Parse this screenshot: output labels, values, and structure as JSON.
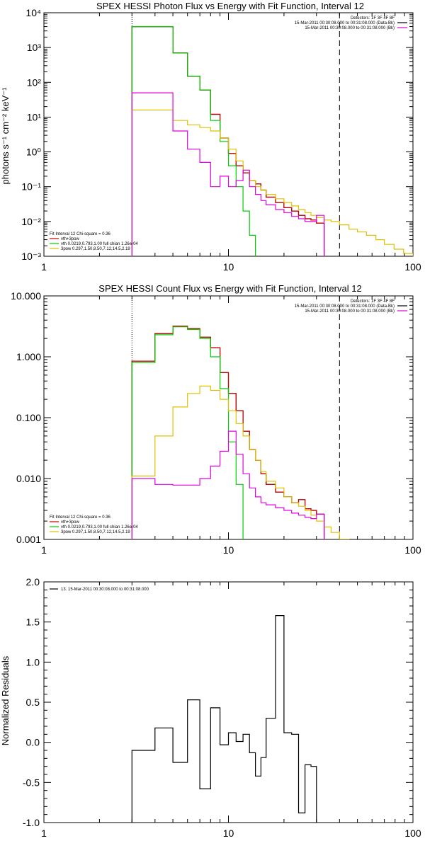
{
  "panels": [
    {
      "title": "SPEX HESSI Photon Flux vs Energy with Fit Function, Interval 12",
      "ylabel": "photons s⁻¹ cm⁻² keV⁻¹",
      "ytick_labels": [
        "10⁻³",
        "10⁻²",
        "10⁻¹",
        "10⁰",
        "10¹",
        "10²",
        "10³",
        "10⁴"
      ],
      "xtick_labels": [
        "1",
        "10",
        "100"
      ],
      "top_legend": [
        "Detectors: 1F 3F 4F 8F",
        "15-Mar-2011 00:30:08.000 to 00:31:08.000 (Data-Bk)",
        "15-Mar-2011 00:30:08.000 to 00:31:08.000 (Bk)"
      ],
      "fit_legend": [
        "Fit Interval 12    Chi-square = 0.36",
        "vth+3pow",
        "vth 0.0219,0.793,1.00  full chian 1.26e-04",
        "3pow 0.297,1.50,8.50,7.12,14.5,2.19"
      ]
    },
    {
      "title": "SPEX HESSI Count Flux vs Energy with Fit Function, Interval 12",
      "ylabel": "",
      "ytick_labels": [
        "0.001",
        "0.010",
        "0.100",
        "1.000",
        "10.000"
      ],
      "xtick_labels": [
        "1",
        "10",
        "100"
      ],
      "top_legend": [
        "Detectors: 1F 3F 4F 8F",
        "15-Mar-2011 00:30:08.000 to 00:31:08.000 (Data-Bk)",
        "15-Mar-2011 00:30:08.000 to 00:31:08.000 (Bk)"
      ],
      "fit_legend": [
        "Fit Interval 12    Chi-square = 0.36",
        "vth+3pow",
        "vth 0.0219,0.793,1.00  full chian 1.26e-04",
        "3pow 0.297,1.50,8.50,7.12,14.5,2.19"
      ]
    },
    {
      "title": "",
      "ylabel": "Normalized Residuals",
      "ytick_labels": [
        "-1.0",
        "-0.5",
        "0.0",
        "0.5",
        "1.0",
        "1.5",
        "2.0"
      ],
      "xtick_labels": [
        "1",
        "10",
        "100"
      ],
      "legend": [
        "13. 15-Mar-2011 00:30:08.000 to 00:31:08.000"
      ]
    }
  ],
  "chart_data": [
    {
      "type": "line",
      "title": "SPEX HESSI Photon Flux vs Energy with Fit Function, Interval 12",
      "xlabel": "",
      "ylabel": "photons s⁻¹ cm⁻² keV⁻¹",
      "xscale": "log",
      "yscale": "log",
      "xlim": [
        1,
        100
      ],
      "ylim": [
        0.001,
        10000
      ],
      "vlines": [
        {
          "x": 3,
          "style": "dotted"
        },
        {
          "x": 40,
          "style": "dashed"
        }
      ],
      "bin_edges": [
        3,
        4,
        5,
        6,
        7,
        8,
        9,
        10,
        11,
        12,
        13,
        14,
        15,
        16,
        18,
        20,
        22,
        24,
        26,
        28,
        30,
        33,
        36,
        40,
        45,
        50,
        56,
        63,
        70,
        79,
        89,
        100
      ],
      "series": [
        {
          "name": "",
          "color": "#000000",
          "values": [
            4000,
            4000,
            700,
            150,
            60,
            12,
            2.5,
            0.9,
            0.4,
            0.25,
            0.15,
            0.12,
            0.08,
            0.05,
            0.035,
            0.025,
            0.02,
            0.015,
            0.012,
            0.011,
            0.009
          ]
        },
        {
          "name": "",
          "color": "#cc0000",
          "values": [
            4000,
            4000,
            700,
            150,
            60,
            12,
            2.5,
            0.9,
            0.4,
            0.25,
            0.15,
            0.12,
            0.08,
            0.05,
            0.035,
            0.025,
            0.02,
            0.015,
            0.012,
            0.011,
            0.009
          ]
        },
        {
          "name": "",
          "color": "#00cc00",
          "values": [
            4000,
            4000,
            700,
            150,
            60,
            8,
            2.0,
            0.4,
            0.1,
            0.02,
            0.004
          ]
        },
        {
          "name": "",
          "color": "#e0c000",
          "values": [
            16,
            16,
            8,
            6,
            5,
            4,
            2.5,
            1.2,
            0.55,
            0.3,
            0.15,
            0.1,
            0.08,
            0.06,
            0.045,
            0.035,
            0.028,
            0.022,
            0.018,
            0.015,
            0.013,
            0.011,
            0.01,
            0.008,
            0.006,
            0.005,
            0.004,
            0.003,
            0.0022,
            0.0016,
            0.0012
          ]
        },
        {
          "name": "",
          "color": "#e000e0",
          "values": [
            50,
            50,
            4,
            1.2,
            0.5,
            0.1,
            0.2,
            0.1,
            0.15,
            0.3,
            0.1,
            0.06,
            0.04,
            0.03,
            0.022,
            0.018,
            0.014,
            0.012,
            0.01,
            0.01,
            0.015
          ]
        }
      ]
    },
    {
      "type": "line",
      "title": "SPEX HESSI Count Flux vs Energy with Fit Function, Interval 12",
      "xlabel": "",
      "ylabel": "",
      "xscale": "log",
      "yscale": "log",
      "xlim": [
        1,
        100
      ],
      "ylim": [
        0.001,
        10
      ],
      "vlines": [
        {
          "x": 3,
          "style": "dotted"
        },
        {
          "x": 40,
          "style": "dashed"
        }
      ],
      "bin_edges": [
        3,
        4,
        5,
        6,
        7,
        8,
        9,
        10,
        11,
        12,
        13,
        14,
        15,
        16,
        18,
        20,
        22,
        24,
        26,
        28,
        30,
        33,
        36,
        40,
        45,
        50
      ],
      "series": [
        {
          "name": "",
          "color": "#000000",
          "values": [
            0.85,
            2.4,
            3.2,
            2.9,
            2.1,
            1.4,
            0.55,
            0.25,
            0.13,
            0.06,
            0.03,
            0.02,
            0.012,
            0.008,
            0.006,
            0.005,
            0.004,
            0.0045,
            0.0032,
            0.003,
            0.0026
          ]
        },
        {
          "name": "",
          "color": "#cc0000",
          "values": [
            0.85,
            2.4,
            3.2,
            2.9,
            2.1,
            1.4,
            0.55,
            0.25,
            0.13,
            0.06,
            0.03,
            0.02,
            0.012,
            0.008,
            0.006,
            0.005,
            0.004,
            0.0045,
            0.0032,
            0.003,
            0.0026
          ]
        },
        {
          "name": "",
          "color": "#00cc00",
          "values": [
            0.8,
            2.3,
            3.1,
            2.8,
            2.0,
            1.0,
            0.3,
            0.04,
            0.008,
            0.0009
          ]
        },
        {
          "name": "",
          "color": "#e0c000",
          "values": [
            0.011,
            0.05,
            0.15,
            0.25,
            0.33,
            0.28,
            0.2,
            0.13,
            0.08,
            0.05,
            0.03,
            0.02,
            0.013,
            0.009,
            0.007,
            0.005,
            0.004,
            0.0035,
            0.003,
            0.0025,
            0.002,
            0.0016,
            0.0013,
            0.001,
            0.0008
          ]
        },
        {
          "name": "",
          "color": "#e000e0",
          "values": [
            0.01,
            0.008,
            0.0078,
            0.0078,
            0.01,
            0.016,
            0.028,
            0.06,
            0.025,
            0.012,
            0.007,
            0.005,
            0.004,
            0.0037,
            0.0033,
            0.003,
            0.0027,
            0.0025,
            0.0023,
            0.0022,
            0.0026
          ]
        }
      ]
    },
    {
      "type": "line",
      "title": "",
      "xlabel": "",
      "ylabel": "Normalized Residuals",
      "xscale": "log",
      "yscale": "linear",
      "xlim": [
        1,
        100
      ],
      "ylim": [
        -1,
        2
      ],
      "bin_edges": [
        3,
        4,
        5,
        6,
        7,
        8,
        9,
        10,
        11,
        12,
        13,
        14,
        15,
        16,
        18,
        20,
        22,
        24,
        26,
        28,
        30,
        33,
        36,
        40
      ],
      "series": [
        {
          "name": "13. 15-Mar-2011 00:30:08.000 to 00:31:08.000",
          "color": "#000000",
          "values": [
            -0.1,
            0.18,
            -0.25,
            0.53,
            -0.58,
            0.43,
            -0.03,
            0.12,
            0.01,
            0.1,
            -0.13,
            -0.42,
            -0.19,
            0.3,
            1.58,
            0.12,
            0.1,
            -0.88,
            -0.28,
            -0.3
          ]
        }
      ]
    }
  ]
}
